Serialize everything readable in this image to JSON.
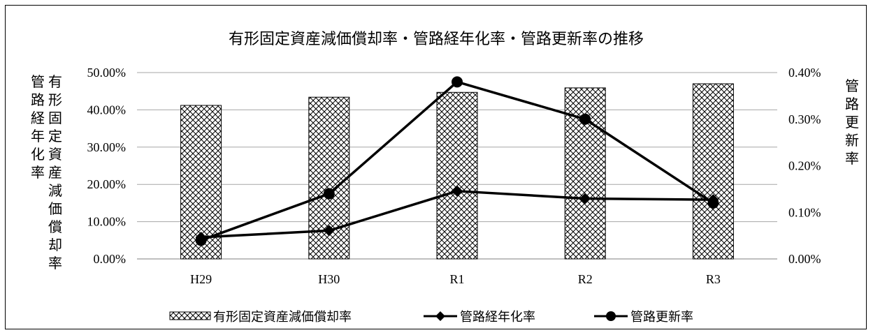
{
  "chart_data": {
    "type": "bar",
    "title": "有形固定資産減価償却率・管路経年化率・管路更新率の推移",
    "categories": [
      "H29",
      "H30",
      "R1",
      "R2",
      "R3"
    ],
    "series": [
      {
        "name": "有形固定資産減価償却率",
        "type": "bar",
        "axis": "left",
        "pattern": "diagonal-crosshatch",
        "values": [
          41.2,
          43.4,
          44.7,
          45.9,
          47.0
        ]
      },
      {
        "name": "管路経年化率",
        "type": "line",
        "axis": "left",
        "marker": "diamond",
        "values": [
          5.8,
          7.6,
          18.2,
          16.2,
          15.9
        ]
      },
      {
        "name": "管路更新率",
        "type": "line",
        "axis": "right",
        "marker": "circle",
        "values": [
          0.04,
          0.14,
          0.38,
          0.3,
          0.12
        ]
      }
    ],
    "y_left": {
      "label": "管路経年化率",
      "label2": "有形固定資産減価償却率",
      "ylim": [
        0,
        50
      ],
      "ticks": [
        0,
        10,
        20,
        30,
        40,
        50
      ],
      "tick_labels": [
        "0.00%",
        "10.00%",
        "20.00%",
        "30.00%",
        "40.00%",
        "50.00%"
      ]
    },
    "y_right": {
      "label": "管路更新率",
      "ylim": [
        0,
        0.4
      ],
      "ticks": [
        0,
        0.1,
        0.2,
        0.3,
        0.4
      ],
      "tick_labels": [
        "0.00%",
        "0.10%",
        "0.20%",
        "0.30%",
        "0.40%"
      ]
    },
    "grid": true,
    "legend_position": "bottom",
    "colors": {
      "line": "#000000",
      "bar_fill": "#ffffff",
      "grid": "#a6a6a6"
    }
  }
}
